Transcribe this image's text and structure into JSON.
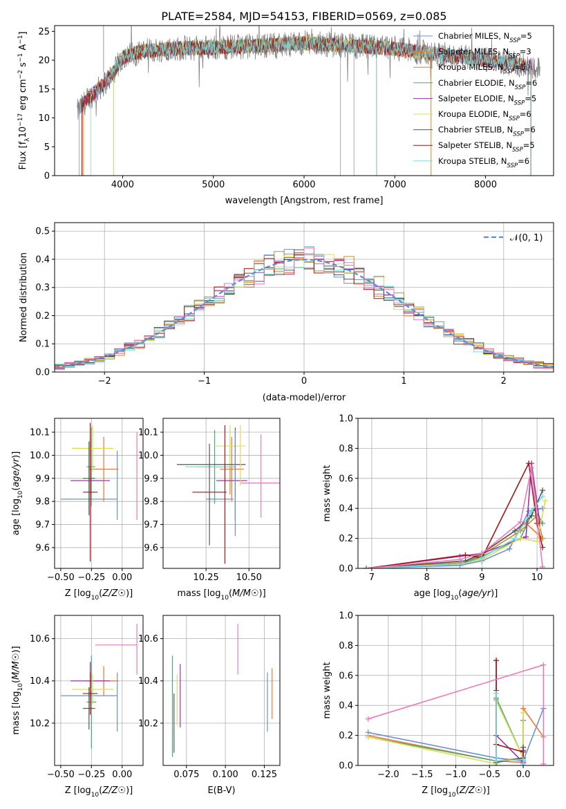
{
  "title": "PLATE=2584, MJD=54153, FIBERID=0569, z=0.085",
  "colors": [
    "#6a8fd8",
    "#ee7733",
    "#cc8822",
    "#44aa77",
    "#9933aa",
    "#dddd55",
    "#555555",
    "#aa1111",
    "#77dddd",
    "#ee77bb"
  ],
  "chart_data": [
    {
      "id": "spectrum",
      "type": "line",
      "xlabel": "wavelength [Angstrom, rest frame]",
      "ylabel": "Flux [f$_\\lambda$10$^{-17}$ erg cm$^{-2}$ s$^{-1}$ A$^{-1}$]",
      "ylabel_parts": [
        "Flux [f",
        "λ",
        "10",
        "−17",
        " erg cm",
        "−2",
        " s",
        "−1",
        " A",
        "−1",
        "]"
      ],
      "xlim": [
        3250,
        8750
      ],
      "ylim": [
        0,
        26
      ],
      "xticks": [
        "4000",
        "5000",
        "6000",
        "7000",
        "8000"
      ],
      "yticks": [
        "0",
        "5",
        "10",
        "15",
        "20",
        "25"
      ],
      "legend": [
        {
          "name": "Chabrier MILES, N",
          "sub": "SSP",
          "tail": "=5",
          "color": "#6a8fd8"
        },
        {
          "name": "Salpeter MILES, N",
          "sub": "SSP",
          "tail": "=3",
          "color": "#ee7733"
        },
        {
          "name": "Kroupa MILES, N",
          "sub": "SSP",
          "tail": "=5",
          "color": "#cc8822"
        },
        {
          "name": "Chabrier ELODIE, N",
          "sub": "SSP",
          "tail": "=6",
          "color": "#44aa77"
        },
        {
          "name": "Salpeter ELODIE, N",
          "sub": "SSP",
          "tail": "=5",
          "color": "#9933aa"
        },
        {
          "name": "Kroupa ELODIE, N",
          "sub": "SSP",
          "tail": "=6",
          "color": "#dddd55"
        },
        {
          "name": "Chabrier STELIB, N",
          "sub": "SSP",
          "tail": "=6",
          "color": "#555555"
        },
        {
          "name": "Salpeter STELIB, N",
          "sub": "SSP",
          "tail": "=5",
          "color": "#aa1111"
        },
        {
          "name": "Kroupa STELIB, N",
          "sub": "SSP",
          "tail": "=6",
          "color": "#77dddd"
        }
      ],
      "continuum": [
        [
          3500,
          11
        ],
        [
          3600,
          13
        ],
        [
          3700,
          14.5
        ],
        [
          3800,
          16
        ],
        [
          3900,
          17.8
        ],
        [
          4000,
          20.5
        ],
        [
          4200,
          21.5
        ],
        [
          4500,
          22
        ],
        [
          5000,
          22.2
        ],
        [
          5500,
          22.5
        ],
        [
          6000,
          23
        ],
        [
          6500,
          22.5
        ],
        [
          7000,
          22
        ],
        [
          7500,
          21
        ],
        [
          8000,
          20
        ],
        [
          8500,
          19
        ],
        [
          8600,
          18.5
        ]
      ],
      "model_start": [
        3520,
        3560,
        3570,
        3900,
        3550,
        3900,
        3550,
        3550,
        3650
      ],
      "model_end": [
        8500,
        7400,
        7400,
        6800,
        8500,
        8500,
        8500,
        8500,
        8500
      ]
    },
    {
      "id": "residuals",
      "type": "histogram",
      "xlabel": "(data-model)/error",
      "ylabel": "Normed distribution",
      "xlim": [
        -2.5,
        2.5
      ],
      "ylim": [
        0,
        0.53
      ],
      "xticks": [
        "−2",
        "−1",
        "0",
        "1",
        "2"
      ],
      "yticks": [
        "0.0",
        "0.1",
        "0.2",
        "0.3",
        "0.4",
        "0.5"
      ],
      "bin_width": 0.1,
      "normal_label": "𝒩(0, 1)",
      "normal_color": "#5b8bd9"
    },
    {
      "id": "age_vs_Z",
      "type": "errorbar",
      "xlabel": "Z [log10(Z/Z☉)]",
      "ylabel": "age [log10(age/yr)]",
      "xlim": [
        -0.55,
        0.17
      ],
      "ylim": [
        9.51,
        10.16
      ],
      "xticks": [
        "−0.50",
        "−0.25",
        "0.00"
      ],
      "yticks": [
        "9.6",
        "9.7",
        "9.8",
        "9.9",
        "10.0",
        "10.1"
      ],
      "points": [
        {
          "x": -0.27,
          "xerr": 0.23,
          "y": 9.81,
          "yerr": 0.0,
          "color": "#6a8fd8"
        },
        {
          "x": -0.15,
          "xerr": 0.12,
          "y": 9.94,
          "yerr": 0.14,
          "color": "#ee7733"
        },
        {
          "x": -0.26,
          "xerr": 0.03,
          "y": 9.95,
          "yerr": 0.12,
          "color": "#cc8822"
        },
        {
          "x": -0.25,
          "xerr": 0.03,
          "y": 9.95,
          "yerr": 0.17,
          "color": "#44aa77"
        },
        {
          "x": -0.26,
          "xerr": 0.16,
          "y": 9.89,
          "yerr": 0.0,
          "color": "#9933aa"
        },
        {
          "x": -0.24,
          "xerr": 0.17,
          "y": 10.03,
          "yerr": 0.1,
          "color": "#dddd55"
        },
        {
          "x": -0.27,
          "xerr": 0.05,
          "y": 9.9,
          "yerr": 0.16,
          "color": "#555555"
        },
        {
          "x": -0.26,
          "xerr": 0.06,
          "y": 9.84,
          "yerr": 0.3,
          "color": "#aa1111"
        },
        {
          "x": -0.04,
          "xerr": 0.0,
          "y": 9.87,
          "yerr": 0.15,
          "color": "#6a8fd8"
        },
        {
          "x": 0.12,
          "xerr": 0.0,
          "y": 9.91,
          "yerr": 0.19,
          "color": "#ee77bb"
        }
      ]
    },
    {
      "id": "age_vs_mass",
      "type": "errorbar",
      "xlabel": "mass [log10(M/M☉)]",
      "ylabel": "",
      "xlim": [
        10.0,
        10.68
      ],
      "ylim": [
        9.51,
        10.16
      ],
      "xticks": [
        "10.25",
        "10.50"
      ],
      "yticks": [
        "9.6",
        "9.7",
        "9.8",
        "9.9",
        "10.0",
        "10.1"
      ],
      "points": [
        {
          "x": 10.33,
          "xerr": 0.08,
          "y": 9.81,
          "yerr": 0.0,
          "color": "#6a8fd8"
        },
        {
          "x": 10.4,
          "xerr": 0.07,
          "y": 9.94,
          "yerr": 0.14,
          "color": "#ee7733"
        },
        {
          "x": 10.39,
          "xerr": 0.03,
          "y": 9.95,
          "yerr": 0.12,
          "color": "#cc8822"
        },
        {
          "x": 10.3,
          "xerr": 0.1,
          "y": 9.95,
          "yerr": 0.16,
          "color": "#44aa77"
        },
        {
          "x": 10.4,
          "xerr": 0.09,
          "y": 9.89,
          "yerr": 0.0,
          "color": "#9933aa"
        },
        {
          "x": 10.39,
          "xerr": 0.09,
          "y": 10.04,
          "yerr": 0.09,
          "color": "#dddd55"
        },
        {
          "x": 10.28,
          "xerr": 0.2,
          "y": 9.96,
          "yerr": 0.0,
          "color": "#555555"
        },
        {
          "x": 10.27,
          "xerr": 0.1,
          "y": 9.84,
          "yerr": 0.0,
          "color": "#aa1111"
        },
        {
          "x": 10.27,
          "xerr": 0.14,
          "y": 9.95,
          "yerr": 0.0,
          "color": "#77dddd"
        },
        {
          "x": 10.57,
          "xerr": 0.12,
          "y": 9.88,
          "yerr": 0.0,
          "color": "#ee77bb"
        },
        {
          "x": 10.27,
          "xerr": 0.0,
          "y": 9.83,
          "yerr": 0.22,
          "color": "#555555"
        },
        {
          "x": 10.36,
          "xerr": 0.0,
          "y": 9.83,
          "yerr": 0.3,
          "color": "#aa1111"
        },
        {
          "x": 10.42,
          "xerr": 0.0,
          "y": 9.92,
          "yerr": 0.2,
          "color": "#9933aa"
        },
        {
          "x": 10.45,
          "xerr": 0.0,
          "y": 10.0,
          "yerr": 0.13,
          "color": "#dddd55"
        },
        {
          "x": 10.42,
          "xerr": 0.0,
          "y": 9.88,
          "yerr": 0.23,
          "color": "#6a8fd8"
        },
        {
          "x": 10.57,
          "xerr": 0.0,
          "y": 9.91,
          "yerr": 0.18,
          "color": "#ee77bb"
        }
      ]
    },
    {
      "id": "massweight_vs_age",
      "type": "line",
      "xlabel": "age [log10(age/yr)]",
      "ylabel": "mass weight",
      "xlim": [
        6.75,
        10.3
      ],
      "ylim": [
        0,
        1.0
      ],
      "xticks": [
        "7",
        "8",
        "9",
        "10"
      ],
      "yticks": [
        "0.0",
        "0.2",
        "0.4",
        "0.6",
        "0.8",
        "1.0"
      ],
      "series": [
        {
          "color": "#6a8fd8",
          "x": [
            6.9,
            8.6,
            9.0,
            9.5,
            9.85,
            10.1
          ],
          "y": [
            0.0,
            0.02,
            0.05,
            0.13,
            0.38,
            0.4
          ]
        },
        {
          "color": "#ee7733",
          "x": [
            6.9,
            8.65,
            9.0,
            9.8,
            10.1
          ],
          "y": [
            0.0,
            0.03,
            0.1,
            0.3,
            0.2
          ]
        },
        {
          "color": "#cc8822",
          "x": [
            6.9,
            8.7,
            9.0,
            9.7,
            10.0,
            10.1
          ],
          "y": [
            0.0,
            0.04,
            0.09,
            0.25,
            0.35,
            0.2
          ]
        },
        {
          "color": "#44aa77",
          "x": [
            6.9,
            8.65,
            9.0,
            9.7,
            9.95,
            10.1
          ],
          "y": [
            0.0,
            0.03,
            0.08,
            0.2,
            0.4,
            0.3
          ]
        },
        {
          "color": "#9933aa",
          "x": [
            6.9,
            8.6,
            9.0,
            9.8,
            9.9,
            10.05
          ],
          "y": [
            0.0,
            0.08,
            0.1,
            0.21,
            0.7,
            0.3
          ]
        },
        {
          "color": "#dddd55",
          "x": [
            6.9,
            8.65,
            9.0,
            9.7,
            10.0,
            10.15
          ],
          "y": [
            0.0,
            0.03,
            0.06,
            0.2,
            0.18,
            0.45
          ]
        },
        {
          "color": "#555555",
          "x": [
            6.9,
            8.7,
            9.0,
            9.6,
            9.9,
            10.1
          ],
          "y": [
            0.0,
            0.05,
            0.1,
            0.25,
            0.35,
            0.52
          ]
        },
        {
          "color": "#aa1111",
          "x": [
            6.9,
            8.7,
            9.0,
            9.85,
            10.0,
            10.1
          ],
          "y": [
            0.0,
            0.09,
            0.07,
            0.7,
            0.3,
            0.14
          ]
        },
        {
          "color": "#77dddd",
          "x": [
            6.9,
            8.65,
            9.0,
            9.6,
            9.9,
            10.1
          ],
          "y": [
            0.0,
            0.03,
            0.07,
            0.2,
            0.38,
            0.48
          ]
        },
        {
          "color": "#ee77bb",
          "x": [
            6.9,
            8.6,
            9.0,
            9.7,
            9.9,
            10.1
          ],
          "y": [
            0.0,
            0.06,
            0.1,
            0.31,
            0.67,
            0.01
          ]
        }
      ]
    },
    {
      "id": "mass_vs_Z",
      "type": "errorbar",
      "xlabel": "Z [log10(Z/Z☉)]",
      "ylabel": "mass [log10(M/M☉)]",
      "xlim": [
        -0.55,
        0.17
      ],
      "ylim": [
        10.0,
        10.71
      ],
      "xticks": [
        "−0.50",
        "−0.25",
        "0.00"
      ],
      "yticks": [
        "10.2",
        "10.4",
        "10.6"
      ],
      "points": [
        {
          "x": -0.27,
          "xerr": 0.23,
          "y": 10.33,
          "yerr": 0.0,
          "color": "#6a8fd8"
        },
        {
          "x": -0.15,
          "xerr": 0.12,
          "y": 10.4,
          "yerr": 0.07,
          "color": "#ee7733"
        },
        {
          "x": -0.26,
          "xerr": 0.03,
          "y": 10.4,
          "yerr": 0.08,
          "color": "#cc8822"
        },
        {
          "x": -0.25,
          "xerr": 0.04,
          "y": 10.3,
          "yerr": 0.22,
          "color": "#44aa77"
        },
        {
          "x": -0.26,
          "xerr": 0.16,
          "y": 10.4,
          "yerr": 0.09,
          "color": "#9933aa"
        },
        {
          "x": -0.24,
          "xerr": 0.17,
          "y": 10.36,
          "yerr": 0.07,
          "color": "#dddd55"
        },
        {
          "x": -0.27,
          "xerr": 0.05,
          "y": 10.27,
          "yerr": 0.1,
          "color": "#555555"
        },
        {
          "x": -0.26,
          "xerr": 0.06,
          "y": 10.34,
          "yerr": 0.1,
          "color": "#aa1111"
        },
        {
          "x": -0.04,
          "xerr": 0.0,
          "y": 10.3,
          "yerr": 0.14,
          "color": "#6a8fd8"
        },
        {
          "x": -0.05,
          "xerr": 0.17,
          "y": 10.57,
          "yerr": 0.0,
          "color": "#ee77bb"
        },
        {
          "x": 0.12,
          "xerr": 0.0,
          "y": 10.55,
          "yerr": 0.12,
          "color": "#ee77bb"
        }
      ]
    },
    {
      "id": "mass_vs_ebv",
      "type": "errorbar",
      "xlabel": "E(B-V)",
      "ylabel": "",
      "xlim": [
        0.06,
        0.135
      ],
      "ylim": [
        10.0,
        10.71
      ],
      "xticks": [
        "0.075",
        "0.100",
        "0.125"
      ],
      "yticks": [
        "10.2",
        "10.4",
        "10.6"
      ],
      "points": [
        {
          "x": 0.066,
          "xerr": 0.0,
          "y": 10.28,
          "yerr": 0.24,
          "color": "#44aa77"
        },
        {
          "x": 0.067,
          "xerr": 0.0,
          "y": 10.2,
          "yerr": 0.14,
          "color": "#555555"
        },
        {
          "x": 0.069,
          "xerr": 0.0,
          "y": 10.31,
          "yerr": 0.12,
          "color": "#dddd55"
        },
        {
          "x": 0.071,
          "xerr": 0.0,
          "y": 10.33,
          "yerr": 0.15,
          "color": "#9933aa"
        },
        {
          "x": 0.108,
          "xerr": 0.0,
          "y": 10.55,
          "yerr": 0.12,
          "color": "#ee77bb"
        },
        {
          "x": 0.127,
          "xerr": 0.0,
          "y": 10.3,
          "yerr": 0.14,
          "color": "#6a8fd8"
        },
        {
          "x": 0.13,
          "xerr": 0.0,
          "y": 10.34,
          "yerr": 0.12,
          "color": "#ee7733"
        }
      ]
    },
    {
      "id": "massweight_vs_Z",
      "type": "line",
      "xlabel": "Z [log10(Z/Z☉)]",
      "ylabel": "mass weight",
      "xlim": [
        -2.45,
        0.45
      ],
      "ylim": [
        0,
        1.0
      ],
      "xticks": [
        "−2.0",
        "−1.5",
        "−1.0",
        "−0.5",
        "0.0"
      ],
      "yticks": [
        "0.0",
        "0.2",
        "0.4",
        "0.6",
        "0.8",
        "1.0"
      ],
      "series": [
        {
          "color": "#6a8fd8",
          "x": [
            -2.3,
            -0.4,
            0.0,
            0.3,
            0.3
          ],
          "y": [
            0.22,
            0.05,
            0.03,
            0.38,
            0.38
          ]
        },
        {
          "color": "#ee7733",
          "x": [
            -2.3,
            -0.4,
            0.0,
            0.0,
            0.3
          ],
          "y": [
            0.2,
            0.03,
            0.02,
            0.38,
            0.19
          ]
        },
        {
          "color": "#cc8822",
          "x": [
            -0.4,
            -0.4,
            0.0,
            0.0
          ],
          "y": [
            0.44,
            0.03,
            0.05,
            0.3
          ]
        },
        {
          "color": "#44aa77",
          "x": [
            -2.3,
            -0.4,
            -0.4,
            0.0,
            0.0
          ],
          "y": [
            0.19,
            0.03,
            0.45,
            0.05,
            0.3
          ]
        },
        {
          "color": "#9933aa",
          "x": [
            -0.4,
            -0.4,
            0.0,
            0.0
          ],
          "y": [
            0.7,
            0.2,
            0.02,
            0.1
          ]
        },
        {
          "color": "#dddd55",
          "x": [
            -2.3,
            -0.4,
            -0.4,
            0.0,
            0.0
          ],
          "y": [
            0.19,
            0.01,
            0.43,
            0.05,
            0.35
          ]
        },
        {
          "color": "#555555",
          "x": [
            -0.4,
            -0.4,
            0.0,
            0.0
          ],
          "y": [
            0.5,
            0.02,
            0.05,
            0.12
          ]
        },
        {
          "color": "#aa1111",
          "x": [
            -0.4,
            -0.4,
            0.0,
            0.0
          ],
          "y": [
            0.7,
            0.14,
            0.09,
            0.01
          ]
        },
        {
          "color": "#77dddd",
          "x": [
            -0.4,
            -0.4,
            0.0,
            0.0
          ],
          "y": [
            0.48,
            0.03,
            0.04,
            0.01
          ]
        },
        {
          "color": "#ee77bb",
          "x": [
            -2.3,
            0.3,
            0.3
          ],
          "y": [
            0.31,
            0.67,
            0.01
          ]
        }
      ]
    }
  ]
}
